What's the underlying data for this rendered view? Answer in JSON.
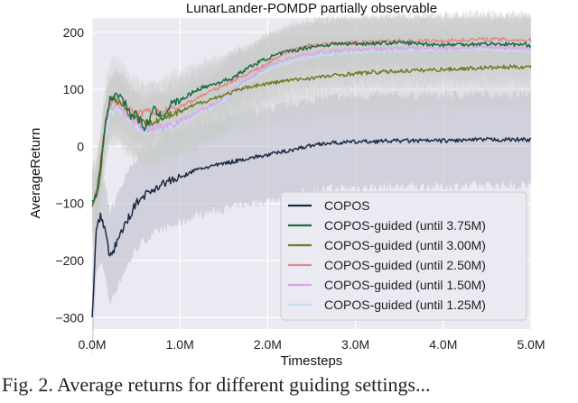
{
  "chart_data": {
    "type": "line",
    "title": "LunarLander-POMDP partially observable",
    "xlabel": "Timesteps",
    "ylabel": "AverageReturn",
    "xlim": [
      0,
      5.0
    ],
    "ylim": [
      -320,
      225
    ],
    "x_ticks": [
      "0.0M",
      "1.0M",
      "2.0M",
      "3.0M",
      "4.0M",
      "5.0M"
    ],
    "y_ticks": [
      "200",
      "100",
      "0",
      "−100",
      "−200",
      "−300"
    ],
    "grid": true,
    "legend_position": "lower-right",
    "series": [
      {
        "name": "COPOS",
        "color": "#1c2a44",
        "x": [
          0,
          0.05,
          0.1,
          0.15,
          0.2,
          0.25,
          0.3,
          0.4,
          0.5,
          0.6,
          0.8,
          1.0,
          1.2,
          1.5,
          1.8,
          2.0,
          2.3,
          2.6,
          3.0,
          3.5,
          4.0,
          4.5,
          5.0
        ],
        "y": [
          -300,
          -140,
          -120,
          -150,
          -195,
          -180,
          -160,
          -130,
          -100,
          -85,
          -65,
          -55,
          -40,
          -30,
          -20,
          -15,
          -5,
          5,
          8,
          10,
          10,
          12,
          12
        ],
        "band": [
          80,
          80
        ]
      },
      {
        "name": "COPOS-guided (until 3.75M)",
        "color": "#1f6a45",
        "x": [
          0,
          0.05,
          0.1,
          0.15,
          0.2,
          0.25,
          0.3,
          0.35,
          0.4,
          0.45,
          0.5,
          0.6,
          0.7,
          0.8,
          0.9,
          1.0,
          1.2,
          1.4,
          1.6,
          1.8,
          2.0,
          2.2,
          2.5,
          2.8,
          3.0,
          3.5,
          4.0,
          4.5,
          5.0
        ],
        "y": [
          -100,
          -80,
          -30,
          40,
          80,
          88,
          90,
          85,
          70,
          50,
          60,
          30,
          65,
          50,
          75,
          80,
          100,
          110,
          120,
          140,
          155,
          165,
          175,
          180,
          180,
          182,
          178,
          180,
          178
        ],
        "band": [
          40,
          40
        ]
      },
      {
        "name": "COPOS-guided (until 3.00M)",
        "color": "#6e7a20",
        "x": [
          0,
          0.05,
          0.1,
          0.15,
          0.2,
          0.25,
          0.3,
          0.35,
          0.4,
          0.5,
          0.6,
          0.7,
          0.8,
          1.0,
          1.2,
          1.4,
          1.6,
          1.8,
          2.0,
          2.2,
          2.5,
          2.8,
          3.0,
          3.5,
          4.0,
          4.5,
          5.0
        ],
        "y": [
          -100,
          -90,
          -40,
          40,
          80,
          85,
          80,
          75,
          60,
          50,
          40,
          45,
          50,
          60,
          75,
          85,
          95,
          105,
          110,
          115,
          120,
          125,
          128,
          132,
          135,
          138,
          140
        ],
        "band": [
          70,
          70
        ]
      },
      {
        "name": "COPOS-guided (until 2.50M)",
        "color": "#e08a8a",
        "x": [
          0,
          0.05,
          0.1,
          0.15,
          0.2,
          0.25,
          0.3,
          0.35,
          0.4,
          0.5,
          0.6,
          0.8,
          1.0,
          1.2,
          1.4,
          1.6,
          1.8,
          2.0,
          2.2,
          2.5,
          3.0,
          3.5,
          4.0,
          4.5,
          5.0
        ],
        "y": [
          -100,
          -80,
          -20,
          40,
          75,
          80,
          78,
          80,
          70,
          55,
          60,
          60,
          70,
          85,
          100,
          115,
          130,
          145,
          165,
          178,
          182,
          185,
          185,
          188,
          186
        ],
        "band": [
          45,
          45
        ]
      },
      {
        "name": "COPOS-guided (until 1.50M)",
        "color": "#d8a6e8",
        "x": [
          0,
          0.05,
          0.1,
          0.15,
          0.2,
          0.3,
          0.4,
          0.5,
          0.6,
          0.8,
          1.0,
          1.2,
          1.4,
          1.6,
          1.8,
          2.0,
          2.3,
          2.6,
          3.0,
          3.5,
          4.0,
          4.5,
          5.0
        ],
        "y": [
          -100,
          -85,
          -30,
          30,
          70,
          72,
          55,
          40,
          30,
          35,
          45,
          60,
          75,
          100,
          120,
          140,
          158,
          165,
          170,
          172,
          172,
          174,
          172
        ],
        "band": [
          55,
          55
        ]
      },
      {
        "name": "COPOS-guided (until 1.25M)",
        "color": "#c8dcf2",
        "x": [
          0,
          0.05,
          0.1,
          0.15,
          0.2,
          0.3,
          0.4,
          0.5,
          0.6,
          0.8,
          1.0,
          1.2,
          1.4,
          1.6,
          1.8,
          2.0,
          2.3,
          2.6,
          3.0,
          3.5,
          4.0,
          4.5,
          5.0
        ],
        "y": [
          -100,
          -85,
          -35,
          20,
          60,
          65,
          50,
          35,
          25,
          30,
          40,
          55,
          70,
          95,
          115,
          135,
          150,
          160,
          165,
          168,
          170,
          170,
          168
        ],
        "band": [
          60,
          60
        ]
      }
    ]
  },
  "caption": {
    "text": "Fig. 2.   Average returns for different guiding settings..."
  }
}
